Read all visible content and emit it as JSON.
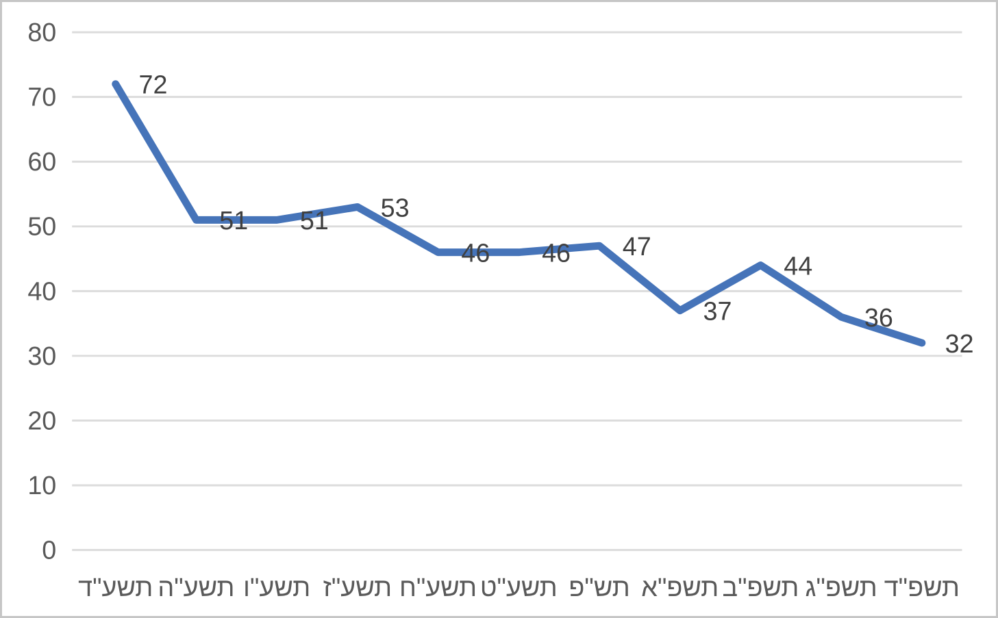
{
  "chart_data": {
    "type": "line",
    "title": "",
    "xlabel": "",
    "ylabel": "",
    "categories": [
      "תשע\"ד",
      "תשע\"ה",
      "תשע\"ו",
      "תשע\"ז",
      "תשע\"ח",
      "תשע\"ט",
      "תש\"פ",
      "תשפ\"א",
      "תשפ\"ב",
      "תשפ\"ג",
      "תשפ\"ד"
    ],
    "series": [
      {
        "name": "",
        "values": [
          72,
          51,
          51,
          53,
          46,
          46,
          47,
          37,
          44,
          36,
          32
        ],
        "data_labels": [
          "72",
          "51",
          "51",
          "53",
          "46",
          "46",
          "47",
          "37",
          "44",
          "36",
          "32"
        ],
        "data_label_position": "right"
      }
    ],
    "y_ticks": [
      0,
      10,
      20,
      30,
      40,
      50,
      60,
      70,
      80
    ],
    "ylim": [
      0,
      80
    ],
    "grid": "horizontal",
    "legend": "none",
    "category_direction": "left-to-right",
    "colors": {
      "line": "#4674B9",
      "gridline": "#DCDCDC",
      "axis_text": "#595959",
      "data_label_text": "#404040",
      "frame_border": "#C6C6C6",
      "background": "#FFFFFF"
    }
  }
}
